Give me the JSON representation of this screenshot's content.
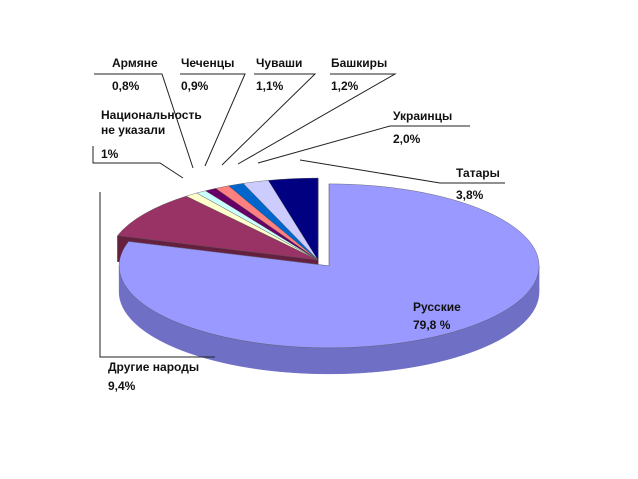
{
  "chart_data": {
    "type": "pie",
    "style": "3d-exploded",
    "legend": "none",
    "slices": [
      {
        "name": "Русские",
        "label": "Русские",
        "value_label": "79,8 %",
        "value": 79.8,
        "color": "#9999ff",
        "side_color": "#6f6fc6"
      },
      {
        "name": "Другие народы",
        "label": "Другие народы",
        "value_label": "9,4%",
        "value": 9.4,
        "color": "#993366",
        "side_color": "#66203f"
      },
      {
        "name": "Национальность не указали",
        "label_lines": [
          "Национальность",
          "не указали"
        ],
        "value_label": "1%",
        "value": 1.0,
        "color": "#ffffcc",
        "side_color": "#b8b88a"
      },
      {
        "name": "Армяне",
        "label": "Армяне",
        "value_label": "0,8%",
        "value": 0.8,
        "color": "#ccffff",
        "side_color": "#8fb8b8"
      },
      {
        "name": "Чеченцы",
        "label": "Чеченцы",
        "value_label": "0,9%",
        "value": 0.9,
        "color": "#660066",
        "side_color": "#440044"
      },
      {
        "name": "Чуваши",
        "label": "Чуваши",
        "value_label": "1,1%",
        "value": 1.1,
        "color": "#ff8080",
        "side_color": "#b85a5a"
      },
      {
        "name": "Башкиры",
        "label": "Башкиры",
        "value_label": "1,2%",
        "value": 1.2,
        "color": "#0066cc",
        "side_color": "#004488"
      },
      {
        "name": "Украинцы",
        "label": "Украинцы",
        "value_label": "2,0%",
        "value": 2.0,
        "color": "#ccccff",
        "side_color": "#9090b8"
      },
      {
        "name": "Татары",
        "label": "Татары",
        "value_label": "3,8%",
        "value": 3.8,
        "color": "#000080",
        "side_color": "#000050"
      }
    ]
  }
}
